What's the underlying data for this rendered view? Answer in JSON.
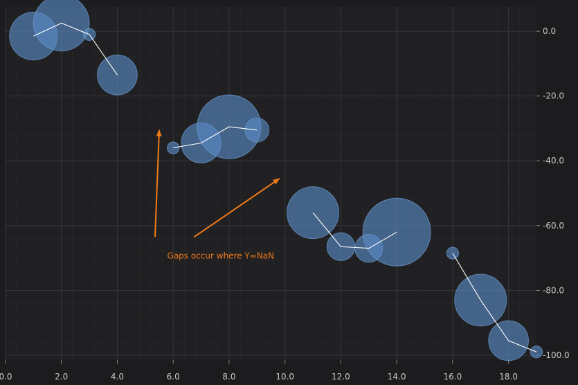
{
  "chart_data": {
    "type": "scatter",
    "xlim": [
      0.0,
      19.0
    ],
    "ylim": [
      -101.5,
      7.5
    ],
    "x_ticks": [
      0.0,
      2.0,
      4.0,
      6.0,
      8.0,
      10.0,
      12.0,
      14.0,
      16.0,
      18.0
    ],
    "x_tick_labels": [
      "0.0",
      "2.0",
      "4.0",
      "6.0",
      "8.0",
      "10.0",
      "12.0",
      "14.0",
      "16.0",
      "18.0"
    ],
    "y_ticks": [
      0.0,
      -20.0,
      -40.0,
      -60.0,
      -80.0,
      -100.0
    ],
    "y_tick_labels": [
      "0.0",
      "-20.0",
      "-40.0",
      "-60.0",
      "-80.0",
      "-100.0"
    ],
    "y_axis_position": "right",
    "grid": true,
    "colors": {
      "background": "#1c1c1e",
      "plot_background": "#202022",
      "grid_major": "#36363a",
      "grid_minor": "#262629",
      "bubble_fill": "#5b8dc6",
      "bubble_stroke": "#6e9ed3",
      "line": "#ffffff",
      "annotation": "#f07a1a"
    },
    "series": [
      {
        "points": [
          {
            "x": 1,
            "y": -1.5,
            "size": 12
          },
          {
            "x": 2,
            "y": 2.5,
            "size": 14
          },
          {
            "x": 3,
            "y": -1.0,
            "size": 3
          },
          {
            "x": 4,
            "y": -13.5,
            "size": 10
          },
          {
            "x": 5,
            "y": null,
            "size": 0
          },
          {
            "x": 6,
            "y": -36.0,
            "size": 3
          },
          {
            "x": 7,
            "y": -34.5,
            "size": 10
          },
          {
            "x": 8,
            "y": -29.5,
            "size": 16
          },
          {
            "x": 9,
            "y": -30.5,
            "size": 6
          },
          {
            "x": 10,
            "y": null,
            "size": 0
          },
          {
            "x": 11,
            "y": -56.0,
            "size": 13
          },
          {
            "x": 12,
            "y": -66.5,
            "size": 7
          },
          {
            "x": 13,
            "y": -67.0,
            "size": 7
          },
          {
            "x": 14,
            "y": -62.0,
            "size": 17
          },
          {
            "x": 15,
            "y": null,
            "size": 0
          },
          {
            "x": 16,
            "y": -68.5,
            "size": 3
          },
          {
            "x": 17,
            "y": -83.0,
            "size": 13
          },
          {
            "x": 18,
            "y": -95.5,
            "size": 10
          },
          {
            "x": 19,
            "y": -99.0,
            "size": 3
          }
        ]
      }
    ],
    "annotations": [
      {
        "text": "Gaps occur where Y=NaN",
        "x": 7.7,
        "y": -70.2
      }
    ],
    "arrows": [
      {
        "from": [
          5.35,
          -63.5
        ],
        "to": [
          5.5,
          -30.5
        ]
      },
      {
        "from": [
          6.75,
          -63.5
        ],
        "to": [
          9.8,
          -45.5
        ]
      }
    ]
  }
}
